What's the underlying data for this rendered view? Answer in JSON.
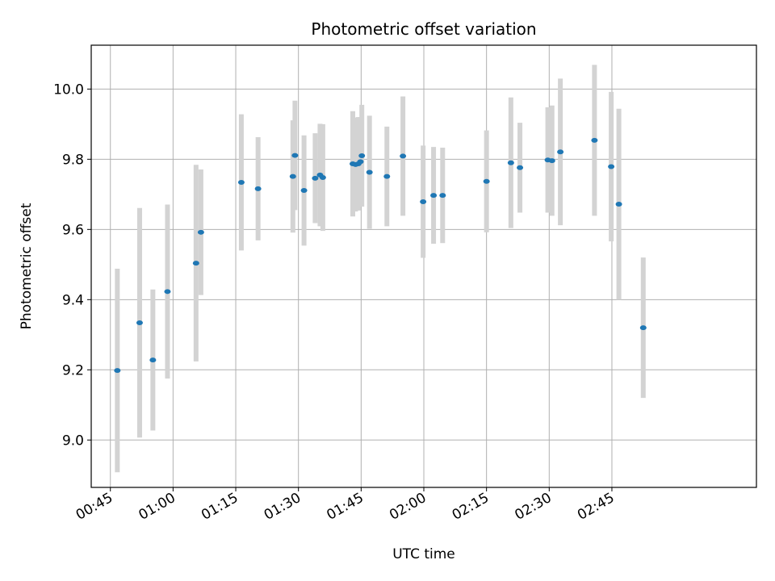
{
  "chart_data": {
    "type": "scatter",
    "title": "Photometric offset variation",
    "xlabel": "UTC time",
    "ylabel": "Photometric offset",
    "grid": true,
    "xlim": [
      "00:40:25",
      "03:19:35"
    ],
    "ylim": [
      8.865,
      10.125
    ],
    "x_ticks": [
      "00:45",
      "01:00",
      "01:15",
      "01:30",
      "01:45",
      "02:00",
      "02:15",
      "02:30",
      "02:45"
    ],
    "y_ticks": [
      "9.0",
      "9.2",
      "9.4",
      "9.6",
      "9.8",
      "10.0"
    ],
    "colors": {
      "marker": "#1f77b4",
      "errorbar": "#d3d3d3",
      "grid": "#b0b0b0"
    },
    "points": [
      {
        "time": "00:46:40",
        "y": 9.198,
        "err": 0.29
      },
      {
        "time": "00:52:00",
        "y": 9.334,
        "err": 0.327
      },
      {
        "time": "00:55:10",
        "y": 9.228,
        "err": 0.201
      },
      {
        "time": "00:58:40",
        "y": 9.423,
        "err": 0.248
      },
      {
        "time": "01:05:30",
        "y": 9.504,
        "err": 0.28
      },
      {
        "time": "01:06:40",
        "y": 9.592,
        "err": 0.179
      },
      {
        "time": "01:16:20",
        "y": 9.734,
        "err": 0.194
      },
      {
        "time": "01:20:20",
        "y": 9.716,
        "err": 0.147
      },
      {
        "time": "01:28:40",
        "y": 9.751,
        "err": 0.16
      },
      {
        "time": "01:29:10",
        "y": 9.811,
        "err": 0.156
      },
      {
        "time": "01:31:20",
        "y": 9.711,
        "err": 0.157
      },
      {
        "time": "01:34:00",
        "y": 9.746,
        "err": 0.128
      },
      {
        "time": "01:35:10",
        "y": 9.755,
        "err": 0.146
      },
      {
        "time": "01:35:50",
        "y": 9.748,
        "err": 0.152
      },
      {
        "time": "01:43:00",
        "y": 9.787,
        "err": 0.15
      },
      {
        "time": "01:43:40",
        "y": 9.785,
        "err": 0.134
      },
      {
        "time": "01:44:20",
        "y": 9.787,
        "err": 0.133
      },
      {
        "time": "01:44:50",
        "y": 9.793,
        "err": 0.127
      },
      {
        "time": "01:45:10",
        "y": 9.81,
        "err": 0.145
      },
      {
        "time": "01:47:00",
        "y": 9.763,
        "err": 0.161
      },
      {
        "time": "01:51:10",
        "y": 9.751,
        "err": 0.142
      },
      {
        "time": "01:55:00",
        "y": 9.809,
        "err": 0.17
      },
      {
        "time": "01:59:50",
        "y": 9.679,
        "err": 0.16
      },
      {
        "time": "02:02:20",
        "y": 9.697,
        "err": 0.138
      },
      {
        "time": "02:04:30",
        "y": 9.697,
        "err": 0.136
      },
      {
        "time": "02:15:00",
        "y": 9.737,
        "err": 0.145
      },
      {
        "time": "02:20:50",
        "y": 9.79,
        "err": 0.186
      },
      {
        "time": "02:23:00",
        "y": 9.776,
        "err": 0.128
      },
      {
        "time": "02:29:40",
        "y": 9.798,
        "err": 0.15
      },
      {
        "time": "02:30:40",
        "y": 9.796,
        "err": 0.157
      },
      {
        "time": "02:32:40",
        "y": 9.821,
        "err": 0.209
      },
      {
        "time": "02:40:50",
        "y": 9.854,
        "err": 0.215
      },
      {
        "time": "02:44:50",
        "y": 9.779,
        "err": 0.213
      },
      {
        "time": "02:46:40",
        "y": 9.672,
        "err": 0.272
      },
      {
        "time": "02:52:30",
        "y": 9.32,
        "err": 0.2
      }
    ]
  }
}
